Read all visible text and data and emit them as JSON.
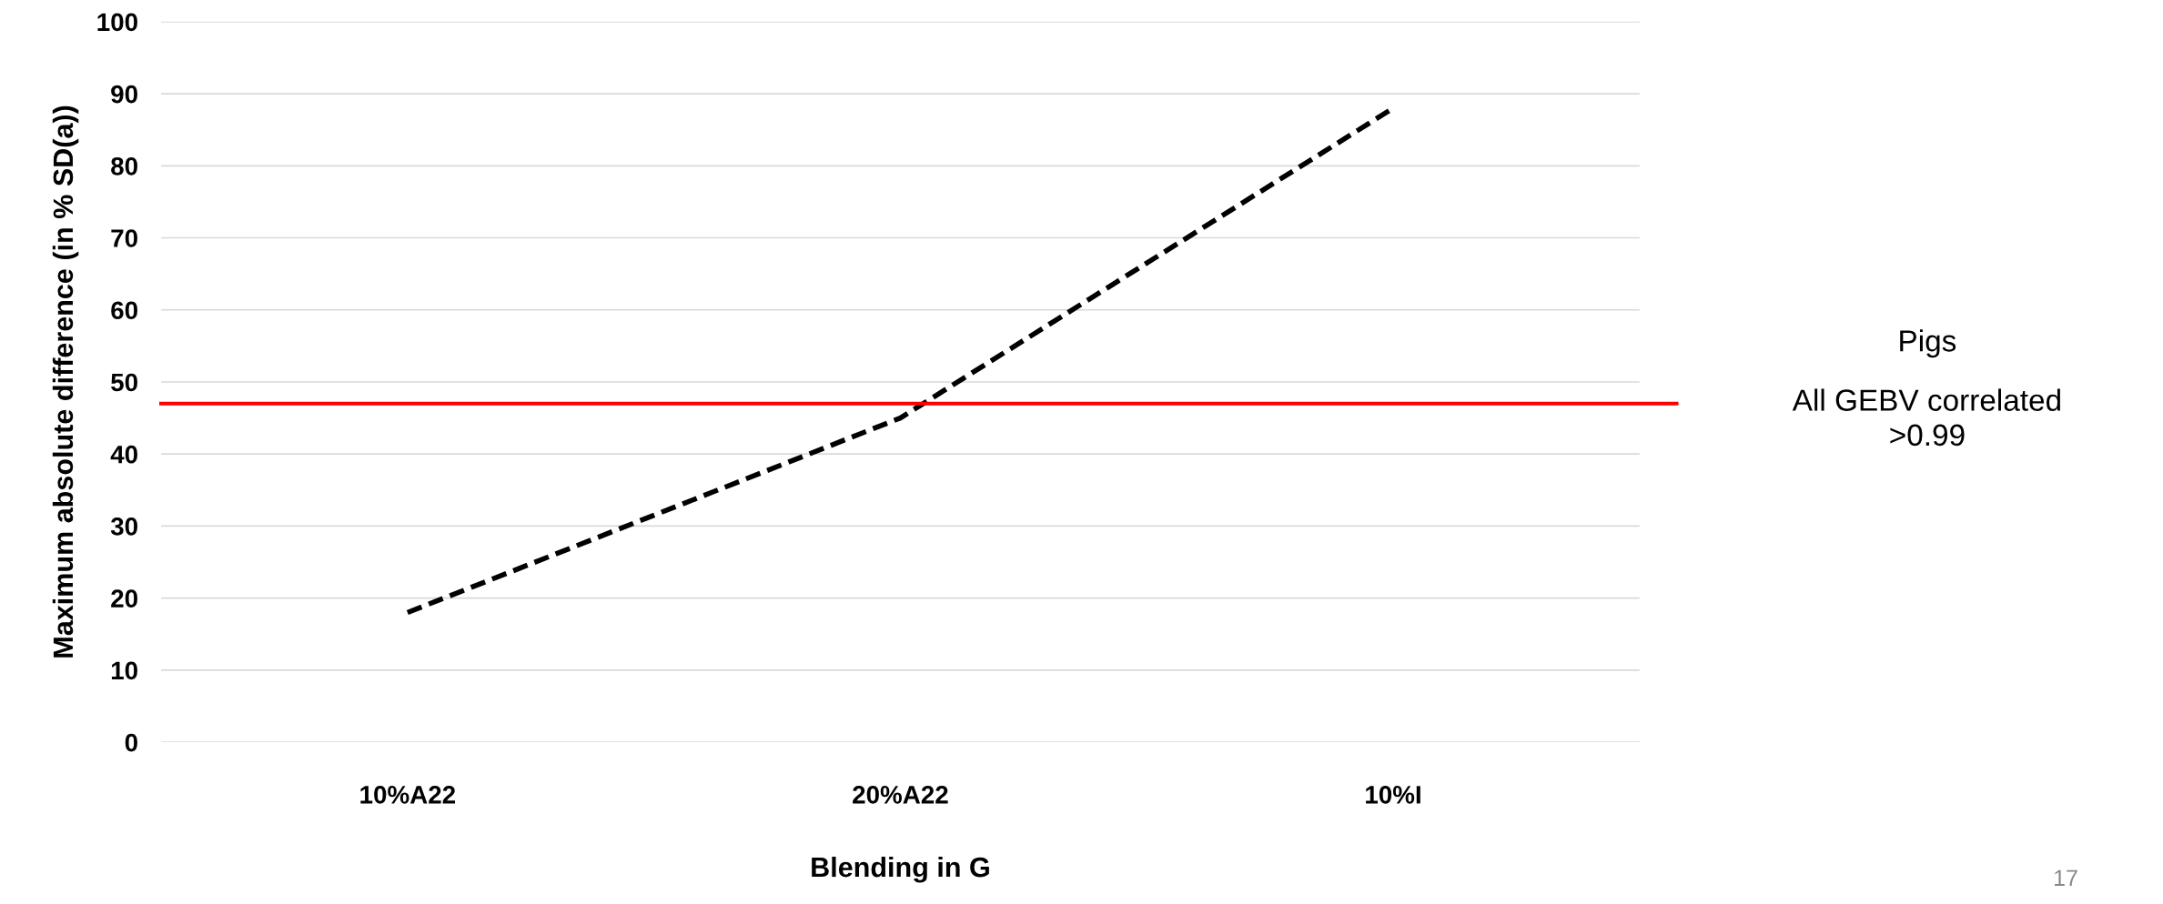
{
  "chart_data": {
    "type": "line",
    "xlabel": "Blending in G",
    "ylabel": "Maximum absolute difference (in % SD(a))",
    "categories": [
      "10%A22",
      "20%A22",
      "10%I"
    ],
    "series": [
      {
        "color": "#000000",
        "values": [
          18,
          45,
          88
        ],
        "line_style": "dashed"
      }
    ],
    "ylim": [
      0,
      100
    ],
    "yticks": [
      0,
      10,
      20,
      30,
      40,
      50,
      60,
      70,
      80,
      90,
      100
    ],
    "grid": "y",
    "legend": false,
    "marker": "none",
    "ref_lines": [
      {
        "axis": "y",
        "value": 47,
        "color": "#ff0000",
        "line_style": "solid"
      }
    ],
    "annotations": [
      "Pigs",
      "All GEBV correlated\n>0.99",
      "17"
    ]
  }
}
